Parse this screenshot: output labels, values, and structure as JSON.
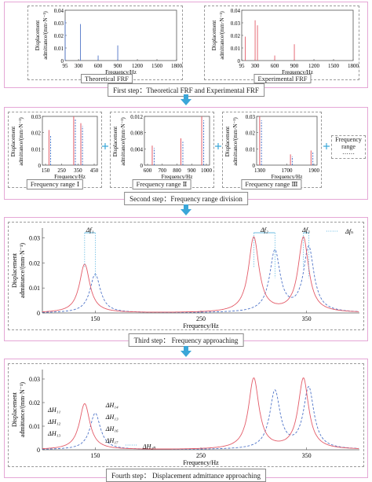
{
  "colors": {
    "theoretical": "#4f74c8",
    "experimental": "#e35b68",
    "frame": "#e5a7d6",
    "arrow": "#3aa6d8"
  },
  "axis": {
    "ylabel_top": "Displacement",
    "ylabel_bottom": "admittance/(mm·N⁻¹)",
    "xlabel": "Frequency/Hz"
  },
  "step1": {
    "title": "First step：Theoretical FRF and Experimental FRF",
    "theoretical_label": "Theoretical FRF",
    "experimental_label": "Experimental FRF",
    "yticks": [
      "0.04",
      "0.03",
      "0.02",
      "0.01",
      "0"
    ],
    "xticks": [
      "95",
      "300",
      "600",
      "900",
      "1200",
      "1500",
      "1800"
    ]
  },
  "step2": {
    "title": "Second step：Frequency range division",
    "ranges": [
      {
        "label": "Frequency range Ⅰ",
        "yticks": [
          "0.03",
          "0.02",
          "0.01",
          "0"
        ],
        "xticks": [
          "150",
          "250",
          "350",
          "450"
        ]
      },
      {
        "label": "Frequency range Ⅱ",
        "yticks": [
          "0.012",
          "0.008",
          "0.004",
          "0"
        ],
        "xticks": [
          "600",
          "700",
          "800",
          "900",
          "1000"
        ]
      },
      {
        "label": "Frequency range Ⅲ",
        "yticks": [
          "0.03",
          "0.02",
          "0.01",
          "0"
        ],
        "xticks": [
          "1300",
          "1700",
          "1900"
        ]
      }
    ],
    "more_box": {
      "line1": "Frequency",
      "line2": "range",
      "line3": "……"
    }
  },
  "step3": {
    "title": "Third step： Frequency approaching",
    "yticks": [
      "0.03",
      "0.02",
      "0.01",
      "0"
    ],
    "xticks": [
      "150",
      "250",
      "350"
    ],
    "df": [
      "Δf₁",
      "Δf₂",
      "Δf₃"
    ],
    "dfn": "Δfₙ"
  },
  "step4": {
    "title": "Fourth step： Displacement admittance approaching",
    "yticks": [
      "0.03",
      "0.02",
      "0.01",
      "0"
    ],
    "xticks": [
      "150",
      "250",
      "350"
    ],
    "dh_left": [
      "ΔH₁₁",
      "ΔH₁₂",
      "ΔH₁₃"
    ],
    "dh_right": [
      "ΔH₁₄",
      "ΔH₁₃",
      "ΔH₁₆",
      "ΔH₁₇"
    ],
    "dh_n": "ΔH₁ₙ"
  },
  "chart_data": [
    {
      "type": "bar",
      "title": "Theoretical FRF",
      "x": [
        95,
        330,
        600,
        900
      ],
      "values": [
        0.032,
        0.029,
        0.004,
        0.012
      ],
      "ylim": [
        0,
        0.04
      ],
      "xlim": [
        95,
        1800
      ]
    },
    {
      "type": "bar",
      "title": "Experimental FRF",
      "x": [
        150,
        300,
        600,
        900
      ],
      "values": [
        0.019,
        0.032,
        0.004,
        0.013
      ],
      "ylim": [
        0,
        0.04
      ],
      "xlim": [
        95,
        1800
      ]
    },
    {
      "type": "line",
      "title": "Third step",
      "series": [
        {
          "name": "theoretical",
          "peaks": [
            [
              150,
              0.0155
            ],
            [
              320,
              0.0245
            ],
            [
              352,
              0.026
            ]
          ]
        },
        {
          "name": "experimental",
          "peaks": [
            [
              140,
              0.0195
            ],
            [
              300,
              0.03
            ],
            [
              347,
              0.03
            ]
          ]
        }
      ],
      "xlim": [
        100,
        400
      ],
      "ylim": [
        0,
        0.034
      ]
    }
  ]
}
